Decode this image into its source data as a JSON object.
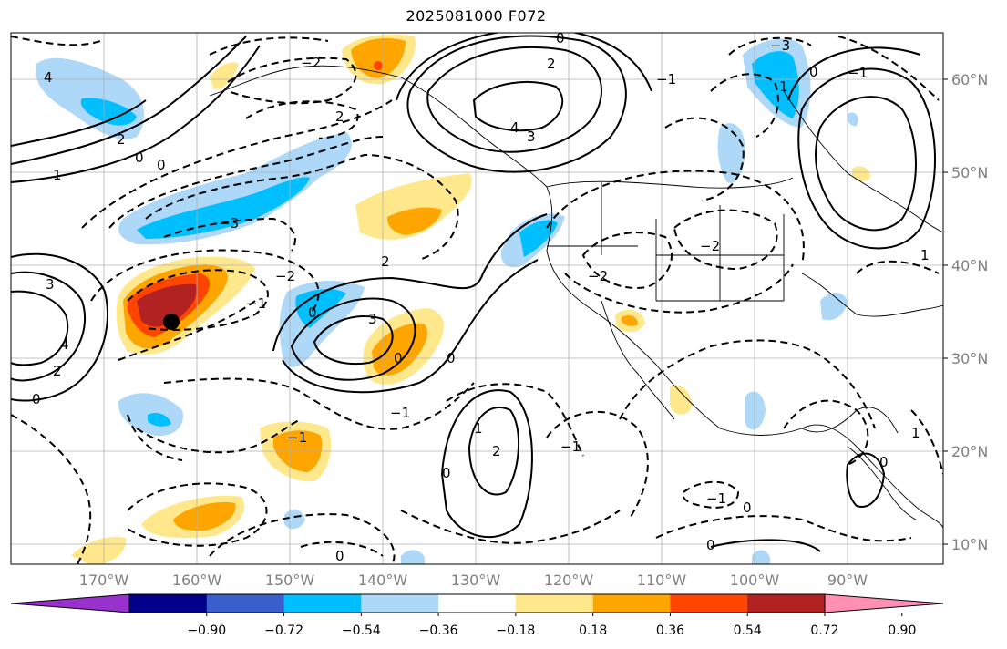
{
  "title": "2025081000 F072",
  "latitude_labels": [
    "60°N",
    "50°N",
    "40°N",
    "30°N",
    "20°N",
    "10°N"
  ],
  "longitude_labels": [
    "170°W",
    "160°W",
    "150°W",
    "140°W",
    "130°W",
    "120°W",
    "110°W",
    "100°W",
    "90°W"
  ],
  "colorbar": {
    "ticks": [
      "−0.90",
      "−0.72",
      "−0.54",
      "−0.36",
      "−0.18",
      "0.18",
      "0.36",
      "0.54",
      "0.72",
      "0.90"
    ],
    "colors": [
      "#9932cc",
      "#00008b",
      "#3a5fcd",
      "#00bfff",
      "#add8f7",
      "#ffffff",
      "#ffe88c",
      "#ffa500",
      "#ff4500",
      "#b22222",
      "#ff8fb3"
    ]
  },
  "contour_labels": [
    "4",
    "2",
    "1",
    "0",
    "0",
    "3",
    "2",
    "−1",
    "−2",
    "−3",
    "0",
    "4",
    "3",
    "2",
    "0",
    "−1",
    "−2",
    "−1",
    "0",
    "−1",
    "2",
    "3",
    "4",
    "1",
    "0",
    "−3",
    "2",
    "−1",
    "−2",
    "0",
    "1",
    "0",
    "1",
    "−1",
    "0",
    "0",
    "0",
    "−2",
    "2",
    "1",
    "0",
    "−1",
    "0"
  ],
  "contour_colors": {
    "positive": "#000000",
    "negative": "#000000",
    "coast": "#000000"
  },
  "marker": {
    "color": "#000000",
    "description": "black dot"
  }
}
